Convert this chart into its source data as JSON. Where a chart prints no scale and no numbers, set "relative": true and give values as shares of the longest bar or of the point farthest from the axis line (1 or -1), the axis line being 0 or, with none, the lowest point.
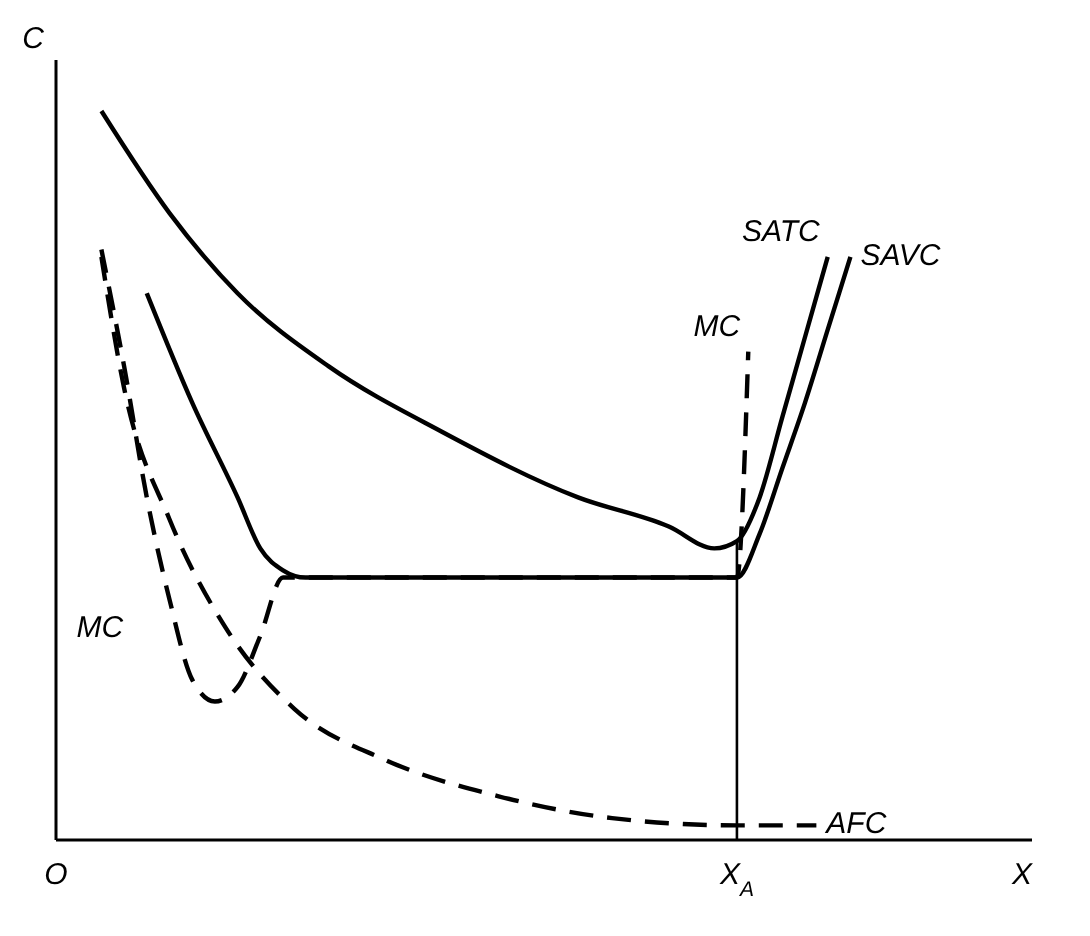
{
  "chart_data": {
    "type": "line",
    "relative": true,
    "xlabel": "X",
    "ylabel": "C",
    "categories": [
      "O",
      null,
      null,
      null,
      null,
      null,
      null,
      null,
      null,
      null,
      null,
      null,
      null,
      null,
      null,
      null,
      null,
      null,
      null,
      null,
      null,
      null,
      null,
      null,
      null,
      null,
      null,
      null,
      null,
      null,
      null,
      null,
      null,
      null,
      null,
      null,
      null,
      null,
      null,
      null,
      null,
      null,
      null,
      null,
      null,
      null,
      null,
      null,
      null,
      null,
      null,
      null,
      null,
      null,
      null,
      null,
      null,
      null,
      null,
      null,
      "X$_{A}$",
      null,
      null,
      null,
      null,
      null,
      null,
      null,
      null,
      null,
      null,
      null,
      null,
      null,
      null,
      null,
      null,
      null,
      null,
      null,
      null,
      null,
      null,
      null,
      null,
      null,
      null
    ],
    "annotations": [
      "MC"
    ],
    "ref_lines": [
      {
        "axis": "x",
        "value": "X$_{A}$",
        "color": "#000000",
        "line_style": "solid"
      }
    ],
    "series": [
      {
        "name": "SATC",
        "color": "#000000",
        "line_style": "solid",
        "values": [
          null,
          null,
          null,
          null,
          1.0,
          null,
          null,
          null,
          null,
          null,
          0.86,
          null,
          null,
          null,
          null,
          null,
          0.75,
          null,
          null,
          null,
          null,
          null,
          null,
          null,
          0.65,
          null,
          null,
          null,
          null,
          null,
          null,
          null,
          null,
          null,
          0.56,
          null,
          null,
          null,
          null,
          null,
          null,
          null,
          null,
          null,
          null,
          null,
          0.47,
          null,
          null,
          null,
          null,
          null,
          null,
          null,
          0.43,
          null,
          null,
          null,
          0.4,
          null,
          0.41,
          null,
          0.47,
          null,
          0.58,
          null,
          0.69,
          null,
          0.8,
          null,
          null,
          null,
          null,
          null,
          null,
          null,
          null,
          null,
          null,
          null,
          null,
          null,
          null,
          null,
          null,
          null,
          null
        ]
      },
      {
        "name": "SAVC",
        "color": "#000000",
        "line_style": "solid",
        "values": [
          null,
          null,
          null,
          null,
          null,
          null,
          null,
          null,
          0.75,
          null,
          null,
          null,
          0.6,
          null,
          null,
          null,
          0.47,
          null,
          0.4,
          null,
          0.37,
          null,
          0.36,
          null,
          null,
          null,
          null,
          null,
          null,
          null,
          null,
          null,
          null,
          null,
          null,
          null,
          null,
          null,
          null,
          null,
          null,
          null,
          null,
          null,
          null,
          null,
          null,
          null,
          null,
          null,
          null,
          null,
          null,
          null,
          null,
          null,
          null,
          null,
          null,
          null,
          0.36,
          null,
          0.42,
          null,
          0.51,
          null,
          0.6,
          null,
          0.7,
          null,
          0.8,
          null,
          null,
          null,
          null,
          null,
          null,
          null,
          null,
          null,
          null,
          null,
          null,
          null,
          null,
          null,
          null
        ]
      },
      {
        "name": "MC",
        "color": "#000000",
        "line_style": "dashed",
        "values": [
          null,
          null,
          null,
          null,
          0.81,
          null,
          0.65,
          null,
          0.47,
          null,
          0.33,
          null,
          0.22,
          null,
          0.19,
          null,
          0.21,
          null,
          0.28,
          null,
          0.36,
          null,
          null,
          null,
          null,
          null,
          null,
          null,
          null,
          null,
          null,
          null,
          null,
          null,
          null,
          null,
          null,
          null,
          null,
          null,
          null,
          null,
          null,
          null,
          null,
          null,
          null,
          null,
          null,
          null,
          null,
          null,
          null,
          null,
          null,
          null,
          null,
          null,
          null,
          null,
          0.36,
          0.67,
          null,
          null,
          null,
          null,
          null,
          null,
          null,
          null,
          null,
          null,
          null,
          null,
          null,
          null,
          null,
          null,
          null,
          null,
          null,
          null,
          null,
          null,
          null,
          null,
          null
        ]
      },
      {
        "name": "AFC",
        "color": "#000000",
        "line_style": "dashed",
        "values": [
          null,
          null,
          null,
          null,
          0.8,
          null,
          0.62,
          null,
          null,
          null,
          0.44,
          null,
          null,
          null,
          null,
          0.29,
          null,
          null,
          null,
          null,
          null,
          0.18,
          null,
          null,
          null,
          null,
          null,
          null,
          null,
          0.11,
          null,
          null,
          null,
          null,
          null,
          null,
          null,
          null,
          null,
          0.06,
          null,
          null,
          null,
          null,
          null,
          null,
          null,
          null,
          null,
          0.03,
          null,
          null,
          null,
          null,
          null,
          null,
          null,
          null,
          null,
          null,
          0.02,
          null,
          null,
          null,
          null,
          null,
          null,
          0.02,
          null,
          null,
          null,
          null,
          null,
          null,
          null,
          null,
          null,
          null,
          null,
          null,
          null,
          null,
          null,
          null,
          null,
          null,
          null
        ]
      }
    ]
  }
}
